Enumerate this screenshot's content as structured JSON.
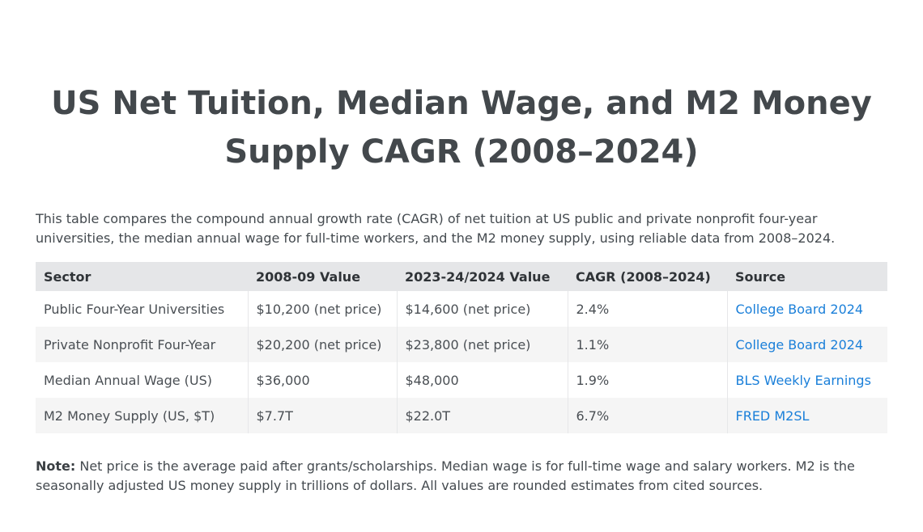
{
  "page": {
    "title": "US Net Tuition, Median Wage, and M2 Money Supply CAGR (2008–2024)",
    "intro": "This table compares the compound annual growth rate (CAGR) of net tuition at US public and private nonprofit four-year universities, the median annual wage for full-time workers, and the M2 money supply, using reliable data from 2008–2024."
  },
  "table": {
    "headers": [
      "Sector",
      "2008-09 Value",
      "2023-24/2024 Value",
      "CAGR (2008–2024)",
      "Source"
    ],
    "rows": [
      [
        "Public Four-Year Universities",
        "$10,200 (net price)",
        "$14,600 (net price)",
        "2.4%",
        "College Board 2024"
      ],
      [
        "Private Nonprofit Four-Year",
        "$20,200 (net price)",
        "$23,800 (net price)",
        "1.1%",
        "College Board 2024"
      ],
      [
        "Median Annual Wage (US)",
        "$36,000",
        "$48,000",
        "1.9%",
        "BLS Weekly Earnings"
      ],
      [
        "M2 Money Supply (US, $T)",
        "$7.7T",
        "$22.0T",
        "6.7%",
        "FRED M2SL"
      ]
    ]
  },
  "note": {
    "label": "Note:",
    "text": " Net price is the average paid after grants/scholarships. Median wage is for full-time wage and salary workers. M2 is the seasonally adjusted US money supply in trillions of dollars. All values are rounded estimates from cited sources."
  },
  "colors": {
    "link": "#1a7fd9",
    "header_bg": "#e5e6e8",
    "stripe_bg": "#f5f5f5",
    "title": "#43484c"
  }
}
